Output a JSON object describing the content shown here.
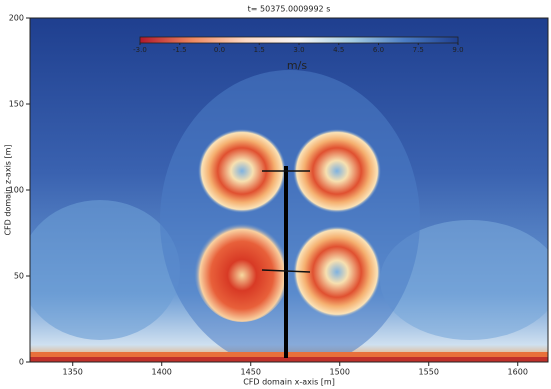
{
  "chart_data": {
    "type": "contour",
    "title": "t= 50375.0009992 s",
    "x_label": "CFD domain x-axis [m]",
    "y_label": "CFD domain z-axis [m]",
    "xlim": [
      1326,
      1617
    ],
    "xticks": [
      1350,
      1400,
      1450,
      1500,
      1550,
      1600
    ],
    "ylim": [
      0,
      200
    ],
    "yticks": [
      0,
      50,
      100,
      150,
      200
    ],
    "colorbar_label": "m/s",
    "clim": [
      -3,
      9
    ],
    "cticks": [
      {
        "value": -3,
        "label": "-3.0"
      },
      {
        "value": -1.5,
        "label": "-1.5"
      },
      {
        "value": 0,
        "label": "0.0"
      },
      {
        "value": 1.5,
        "label": "1.5"
      },
      {
        "value": 3,
        "label": "3.0"
      },
      {
        "value": 4.5,
        "label": "4.5"
      },
      {
        "value": 6,
        "label": "6.0"
      },
      {
        "value": 7.5,
        "label": "7.5"
      },
      {
        "value": 9,
        "label": "9.0"
      }
    ],
    "colormap": [
      "#b2182b",
      "#ef8a62",
      "#fddbc7",
      "#f7f7f7",
      "#a6cee3",
      "#4a7cc4",
      "#1f3f8f"
    ]
  }
}
